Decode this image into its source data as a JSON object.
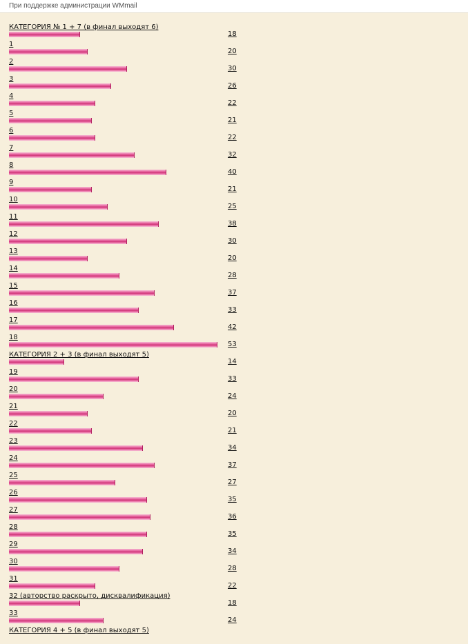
{
  "header": {
    "text": "При поддержке администрации WMmail"
  },
  "rows": [
    {
      "label": "КАТЕГОРИЯ № 1 + 7 (в финал выходят 6)",
      "count": 18
    },
    {
      "label": "1",
      "count": 20
    },
    {
      "label": "2",
      "count": 30
    },
    {
      "label": "3",
      "count": 26
    },
    {
      "label": "4",
      "count": 22
    },
    {
      "label": "5",
      "count": 21
    },
    {
      "label": "6",
      "count": 22
    },
    {
      "label": "7",
      "count": 32
    },
    {
      "label": "8",
      "count": 40
    },
    {
      "label": "9",
      "count": 21
    },
    {
      "label": "10",
      "count": 25
    },
    {
      "label": "11",
      "count": 38
    },
    {
      "label": "12",
      "count": 30
    },
    {
      "label": "13",
      "count": 20
    },
    {
      "label": "14",
      "count": 28
    },
    {
      "label": "15",
      "count": 37
    },
    {
      "label": "16",
      "count": 33
    },
    {
      "label": "17",
      "count": 42
    },
    {
      "label": "18",
      "count": 53
    },
    {
      "label": "КАТЕГОРИЯ 2 + 3 (в финал выходят 5)",
      "count": 14
    },
    {
      "label": "19",
      "count": 33
    },
    {
      "label": "20",
      "count": 24
    },
    {
      "label": "21",
      "count": 20
    },
    {
      "label": "22",
      "count": 21
    },
    {
      "label": "23",
      "count": 34
    },
    {
      "label": "24",
      "count": 37
    },
    {
      "label": "25",
      "count": 27
    },
    {
      "label": "26",
      "count": 35
    },
    {
      "label": "27",
      "count": 36
    },
    {
      "label": "28",
      "count": 35
    },
    {
      "label": "29",
      "count": 34
    },
    {
      "label": "30",
      "count": 28
    },
    {
      "label": "31",
      "count": 22
    },
    {
      "label": "32 (авторство раскрыто, дисквалификация)",
      "count": 18
    },
    {
      "label": "33",
      "count": 24
    },
    {
      "label": "КАТЕГОРИЯ 4 + 5 (в финал выходят 5)",
      "count": null
    }
  ]
}
